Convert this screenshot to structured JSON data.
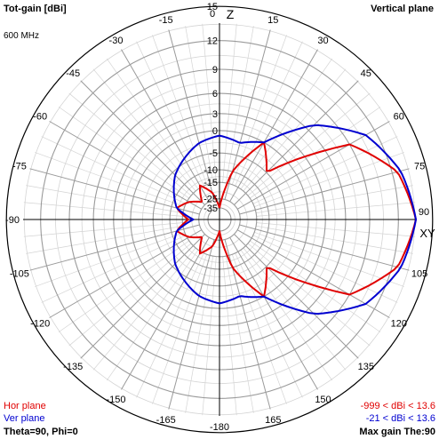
{
  "header": {
    "title": "Tot-gain [dBi]",
    "plane": "Vertical plane",
    "frequency": "600 MHz"
  },
  "footer": {
    "hor_plane": "Hor plane",
    "ver_plane": "Ver plane",
    "angles": "Theta=90, Phi=0",
    "hor_range": "-999 < dBi < 13.6",
    "ver_range": "-21 < dBi < 13.6",
    "max_gain": "Max gain The:90"
  },
  "colors": {
    "hor": "#e00000",
    "ver": "#0000d0",
    "grid": "#9a9a9a",
    "minor": "#d4d4d4",
    "axis": "#000000"
  },
  "chart_data": {
    "type": "polar",
    "axis_labels": {
      "top": "Z",
      "right": "XY"
    },
    "radial_ticks": [
      "15",
      "12",
      "9",
      "6",
      "3",
      "0",
      "-5",
      "-10",
      "-15",
      "-25",
      "-35"
    ],
    "angle_labels": [
      "0",
      "15",
      "30",
      "45",
      "60",
      "75",
      "90",
      "105",
      "120",
      "135",
      "150",
      "165",
      "-180",
      "-165",
      "-150",
      "-135",
      "-120",
      "-105",
      "-90",
      "-75",
      "-60",
      "-45",
      "-30",
      "-15"
    ],
    "series": [
      {
        "name": "Hor plane",
        "angles": [
          0,
          15,
          30,
          45,
          60,
          75,
          90,
          105,
          120,
          135,
          150,
          165,
          180,
          195,
          210,
          225,
          240,
          255,
          270,
          285,
          300,
          315,
          330,
          345,
          360
        ],
        "gain_dbi": [
          -35,
          -10,
          0,
          -5,
          9,
          12.5,
          13.6,
          12.5,
          9,
          -5,
          0,
          -10,
          -35,
          -20,
          -14,
          -22,
          -16,
          -12,
          -18,
          -12,
          -16,
          -22,
          -14,
          -20,
          -35
        ]
      },
      {
        "name": "Ver plane",
        "angles": [
          0,
          15,
          30,
          45,
          60,
          75,
          90,
          105,
          120,
          135,
          150,
          165,
          180,
          195,
          210,
          225,
          240,
          255,
          270,
          285,
          300,
          315,
          330,
          345,
          360
        ],
        "gain_dbi": [
          -1,
          -2,
          0,
          7,
          11,
          12.8,
          13.6,
          12.8,
          11,
          7,
          0,
          -2,
          -1,
          -2,
          -4,
          -6,
          -9,
          -12,
          -21,
          -12,
          -9,
          -6,
          -4,
          -2,
          -1
        ]
      }
    ]
  }
}
